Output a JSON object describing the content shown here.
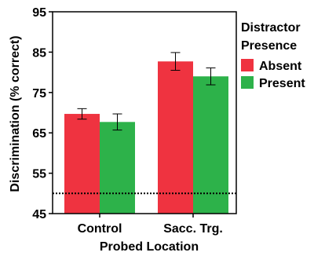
{
  "chart_data": {
    "type": "bar",
    "categories": [
      "Control",
      "Sacc. Trg."
    ],
    "series": [
      {
        "name": "Absent",
        "color": "#ef3340",
        "values": [
          69.7,
          82.7
        ],
        "errors": [
          1.3,
          2.2
        ]
      },
      {
        "name": "Present",
        "color": "#2db24a",
        "values": [
          67.7,
          79.0
        ],
        "errors": [
          2.0,
          2.1
        ]
      }
    ],
    "xlabel": "Probed Location",
    "ylabel": "Discrimination (% correct)",
    "ylim": [
      45,
      95
    ],
    "yticks": [
      45,
      55,
      65,
      75,
      85,
      95
    ],
    "chance_level": 50,
    "legend": {
      "title_lines": [
        "Distractor",
        "Presence"
      ],
      "placement": "right"
    },
    "grid": false
  }
}
